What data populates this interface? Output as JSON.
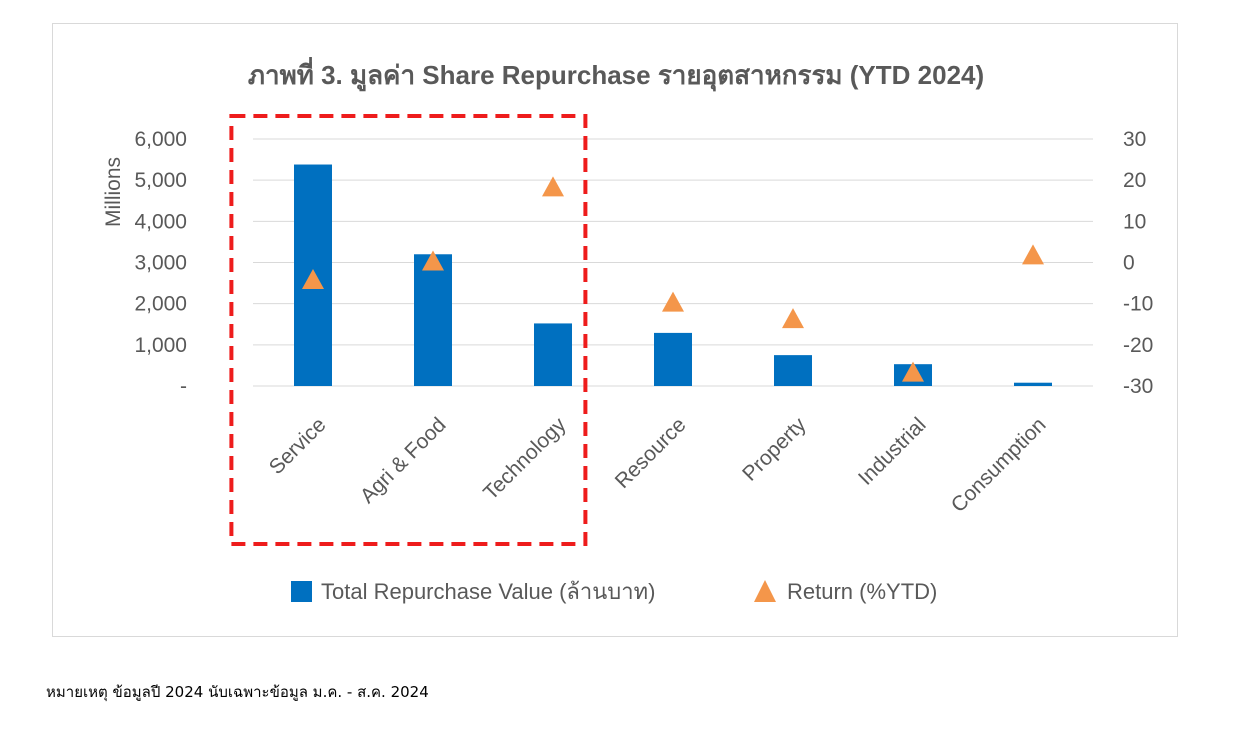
{
  "chart_data": {
    "type": "bar",
    "title": "ภาพที่ 3. มูลค่า Share Repurchase รายอุตสาหกรรม (YTD 2024)",
    "categories": [
      "Service",
      "Agri & Food",
      "Technology",
      "Resource",
      "Property",
      "Industrial",
      "Consumption"
    ],
    "series": [
      {
        "name": "Total Repurchase Value (ล้านบาท)",
        "type": "bar",
        "axis": "left",
        "color": "#0070C0",
        "values": [
          5380,
          3200,
          1520,
          1290,
          750,
          530,
          80
        ]
      },
      {
        "name": "Return (%YTD)",
        "type": "marker",
        "marker": "triangle",
        "axis": "right",
        "color": "#F4964A",
        "values": [
          -4.5,
          0,
          18,
          -10,
          -14,
          -27,
          1.5
        ]
      }
    ],
    "y_left": {
      "label": "Millions",
      "ylim": [
        0,
        6000
      ],
      "ticks": [
        0,
        1000,
        2000,
        3000,
        4000,
        5000,
        6000
      ],
      "tick_labels": [
        "-",
        "1,000",
        "2,000",
        "3,000",
        "4,000",
        "5,000",
        "6,000"
      ]
    },
    "y_right": {
      "ylim": [
        -30,
        30
      ],
      "ticks": [
        -30,
        -20,
        -10,
        0,
        10,
        20,
        30
      ],
      "tick_labels": [
        "-30",
        "-20",
        "-10",
        "0",
        "10",
        "20",
        "30"
      ]
    },
    "grid": true,
    "legend_position": "bottom",
    "highlight": {
      "categories": [
        "Service",
        "Agri & Food",
        "Technology"
      ],
      "style": "dashed-box",
      "color": "#EE1C1C"
    }
  },
  "footnote": "หมายเหตุ ข้อมูลปี 2024 นับเฉพาะข้อมูล ม.ค. - ส.ค. 2024"
}
